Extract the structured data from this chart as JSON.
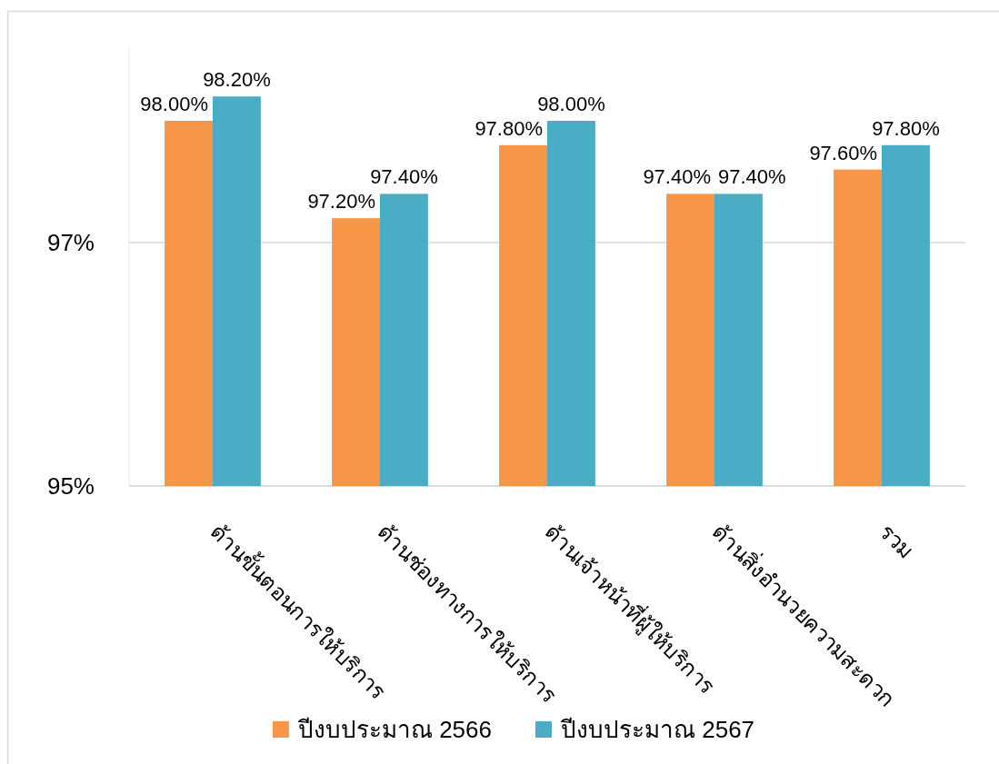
{
  "chart_data": {
    "type": "bar",
    "categories": [
      "ด้านขั้นตอนการให้บริการ",
      "ด้านช่องทางการให้บริการ",
      "ด้านเจ้าหน้าที่ผู้ให้บริการ",
      "ด้านสิ่งอำนวยความสะดวก",
      "รวม"
    ],
    "series": [
      {
        "name": "ปีงบประมาณ 2566",
        "color": "#f79646",
        "values": [
          98.0,
          97.2,
          97.8,
          97.4,
          97.6
        ],
        "value_labels": [
          "98.00%",
          "97.20%",
          "97.80%",
          "97.40%",
          "97.60%"
        ]
      },
      {
        "name": "ปีงบประมาณ 2567",
        "color": "#4bacc6",
        "values": [
          98.2,
          97.4,
          98.0,
          97.4,
          97.8
        ],
        "value_labels": [
          "98.20%",
          "97.40%",
          "98.00%",
          "97.40%",
          "97.80%"
        ]
      }
    ],
    "ylim": [
      95,
      98.6
    ],
    "yticks": [
      {
        "value": 95,
        "label": "95%"
      },
      {
        "value": 97,
        "label": "97%"
      }
    ],
    "grid": "y",
    "legend": "bottom"
  }
}
